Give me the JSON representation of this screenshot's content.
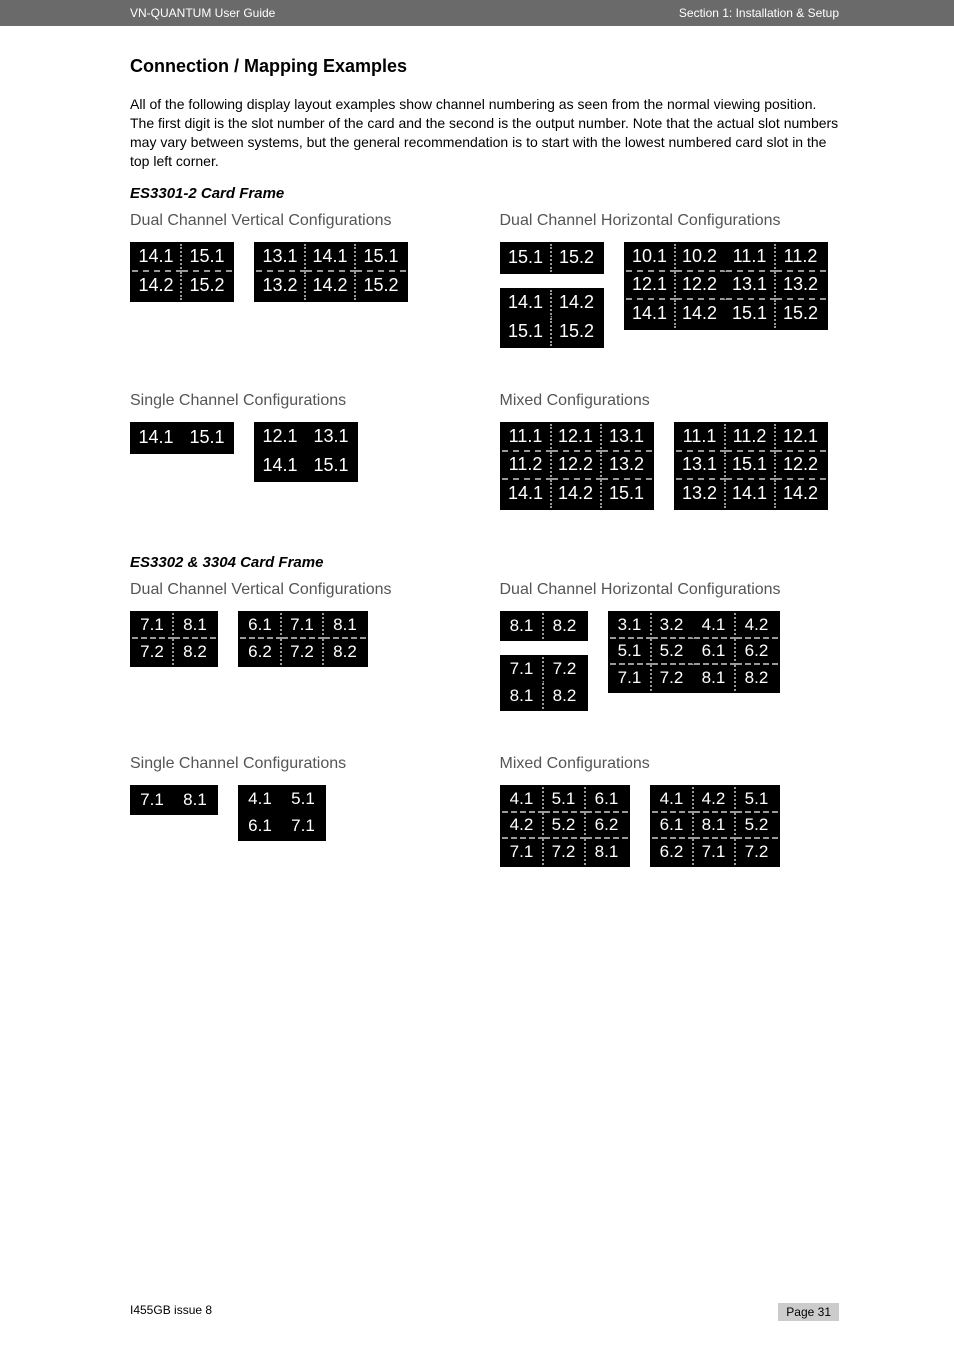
{
  "header": {
    "left": "VN-QUANTUM User Guide",
    "right": "Section 1: Installation & Setup"
  },
  "title": "Connection / Mapping Examples",
  "intro": "All of the following display layout examples show channel numbering as seen from the normal viewing position. The first digit is the slot number of the card and the second is the output number. Note that the actual slot numbers may vary between systems, but the general recommendation is to start with the lowest numbered card slot in the top left corner.",
  "frames": {
    "es3301": {
      "heading": "ES3301-2 Card Frame",
      "dual_vert_title": "Dual Channel Vertical Configurations",
      "dual_horiz_title": "Dual Channel Horizontal Configurations",
      "single_title": "Single Channel Configurations",
      "mixed_title": "Mixed Configurations",
      "dual_vert": {
        "g1": [
          [
            "14.1",
            "15.1"
          ],
          [
            "14.2",
            "15.2"
          ]
        ],
        "g2": [
          [
            "13.1",
            "14.1",
            "15.1"
          ],
          [
            "13.2",
            "14.2",
            "15.2"
          ]
        ]
      },
      "dual_horiz": {
        "g1": [
          [
            "15.1",
            "15.2"
          ]
        ],
        "g2": [
          [
            "14.1",
            "14.2"
          ],
          [
            "15.1",
            "15.2"
          ]
        ],
        "g3": [
          [
            "10.1",
            "10.2",
            "11.1",
            "11.2"
          ],
          [
            "12.1",
            "12.2",
            "13.1",
            "13.2"
          ],
          [
            "14.1",
            "14.2",
            "15.1",
            "15.2"
          ]
        ]
      },
      "single": {
        "g1": [
          [
            "14.1",
            "15.1"
          ]
        ],
        "g2": [
          [
            "12.1",
            "13.1"
          ],
          [
            "14.1",
            "15.1"
          ]
        ]
      },
      "mixed": {
        "g1": [
          [
            "11.1",
            "12.1",
            "13.1"
          ],
          [
            "11.2",
            "12.2",
            "13.2"
          ],
          [
            "14.1",
            "14.2",
            "15.1"
          ]
        ],
        "g2": [
          [
            "11.1",
            "11.2",
            "12.1"
          ],
          [
            "13.1",
            "15.1",
            "12.2"
          ],
          [
            "13.2",
            "14.1",
            "14.2"
          ]
        ]
      }
    },
    "es3302": {
      "heading": "ES3302 & 3304 Card Frame",
      "dual_vert_title": "Dual Channel Vertical Configurations",
      "dual_horiz_title": "Dual Channel Horizontal Configurations",
      "single_title": "Single Channel Configurations",
      "mixed_title": "Mixed Configurations",
      "dual_vert": {
        "g1": [
          [
            "7.1",
            "8.1"
          ],
          [
            "7.2",
            "8.2"
          ]
        ],
        "g2": [
          [
            "6.1",
            "7.1",
            "8.1"
          ],
          [
            "6.2",
            "7.2",
            "8.2"
          ]
        ]
      },
      "dual_horiz": {
        "g1": [
          [
            "8.1",
            "8.2"
          ]
        ],
        "g2": [
          [
            "7.1",
            "7.2"
          ],
          [
            "8.1",
            "8.2"
          ]
        ],
        "g3": [
          [
            "3.1",
            "3.2",
            "4.1",
            "4.2"
          ],
          [
            "5.1",
            "5.2",
            "6.1",
            "6.2"
          ],
          [
            "7.1",
            "7.2",
            "8.1",
            "8.2"
          ]
        ]
      },
      "single": {
        "g1": [
          [
            "7.1",
            "8.1"
          ]
        ],
        "g2": [
          [
            "4.1",
            "5.1"
          ],
          [
            "6.1",
            "7.1"
          ]
        ]
      },
      "mixed": {
        "g1": [
          [
            "4.1",
            "5.1",
            "6.1"
          ],
          [
            "4.2",
            "5.2",
            "6.2"
          ],
          [
            "7.1",
            "7.2",
            "8.1"
          ]
        ],
        "g2": [
          [
            "4.1",
            "4.2",
            "5.1"
          ],
          [
            "6.1",
            "8.1",
            "5.2"
          ],
          [
            "6.2",
            "7.1",
            "7.2"
          ]
        ]
      }
    }
  },
  "footer": {
    "left": "I455GB issue 8",
    "right": "Page 31"
  },
  "style": {
    "cell_bg": "#000000",
    "cell_fg": "#ffffff",
    "divider_color": "#999999",
    "header_bg": "#6a6a6a"
  }
}
